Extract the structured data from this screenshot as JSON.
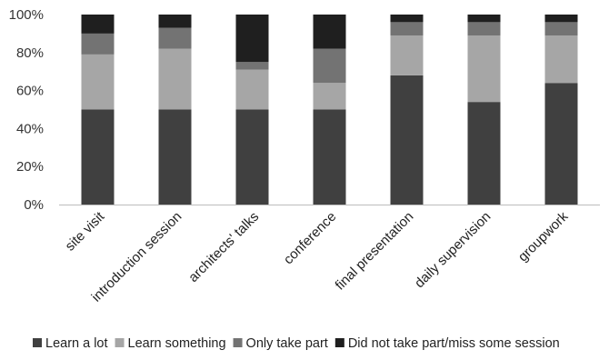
{
  "chart_data": {
    "type": "bar",
    "stacked": true,
    "percent": true,
    "categories": [
      "site visit",
      "introduction session",
      "architects' talks",
      "conference",
      "final presentation",
      "daily supervision",
      "groupwork"
    ],
    "series": [
      {
        "name": "Learn a lot",
        "color": "#404040",
        "values": [
          50,
          50,
          50,
          50,
          68,
          54,
          64
        ]
      },
      {
        "name": "Learn something",
        "color": "#a6a6a6",
        "values": [
          29,
          32,
          21,
          14,
          21,
          35,
          25
        ]
      },
      {
        "name": "Only take part",
        "color": "#737373",
        "values": [
          11,
          11,
          4,
          18,
          7,
          7,
          7
        ]
      },
      {
        "name": "Did not take part/miss some session",
        "color": "#1f1f1f",
        "values": [
          10,
          7,
          25,
          18,
          4,
          4,
          4
        ]
      }
    ],
    "y_ticks": [
      "0%",
      "20%",
      "40%",
      "60%",
      "80%",
      "100%"
    ],
    "ylim": [
      0,
      100
    ],
    "grid": false,
    "legend_position": "bottom"
  }
}
